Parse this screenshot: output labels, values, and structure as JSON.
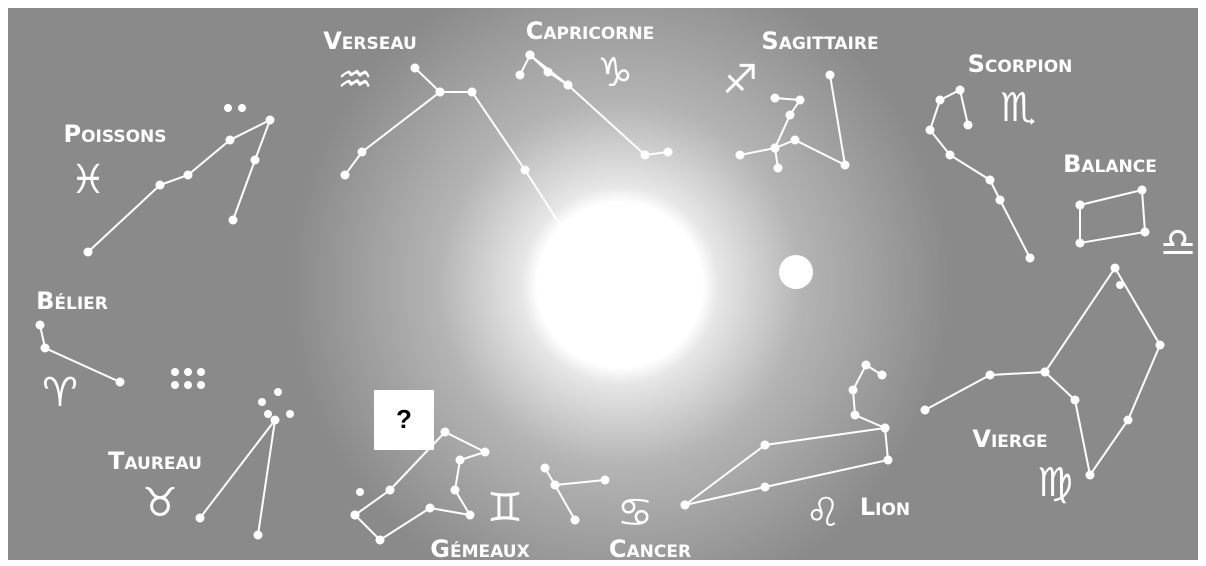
{
  "labels": [
    "Verseau",
    "Capricorne",
    "Sagittaire",
    "Scorpion",
    "Balance",
    "Poissons",
    "Bélier",
    "Taureau",
    "Gémeaux",
    "Cancer",
    "Lion",
    "Vierge"
  ],
  "symbols": [
    "♒",
    "♑",
    "♐",
    "♏",
    "♎",
    "♓",
    "♈",
    "♉",
    "♊",
    "♋",
    "♌",
    "♍"
  ],
  "question": "?"
}
